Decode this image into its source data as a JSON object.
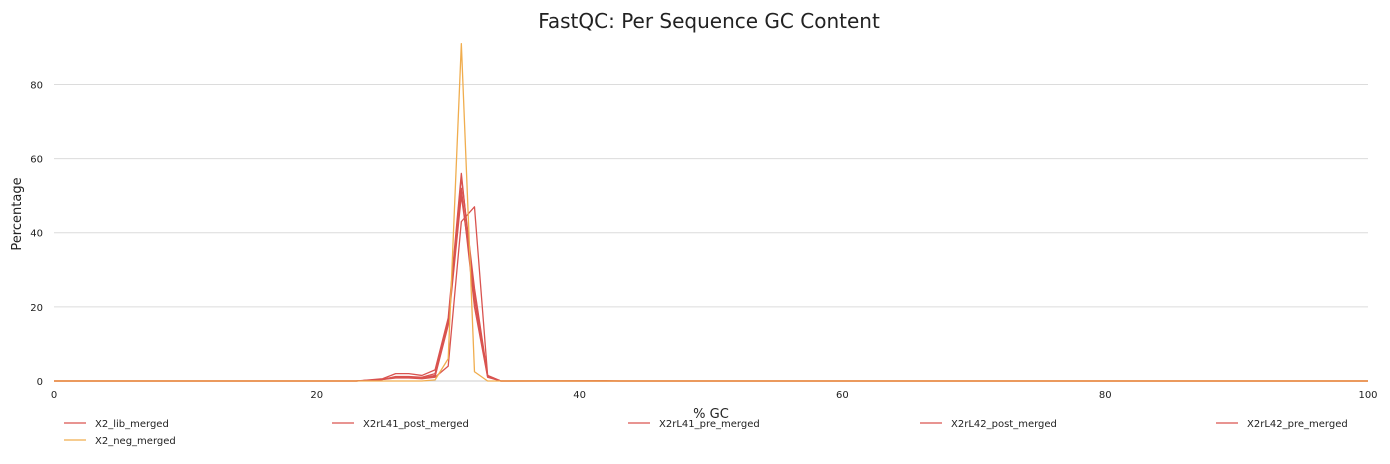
{
  "chart_data": {
    "type": "line",
    "title": "FastQC: Per Sequence GC Content",
    "xlabel": "% GC",
    "ylabel": "Percentage",
    "xlim": [
      0,
      100
    ],
    "ylim": [
      0,
      92
    ],
    "x_ticks": [
      0,
      20,
      40,
      60,
      80,
      100
    ],
    "y_ticks": [
      0,
      20,
      40,
      60,
      80
    ],
    "grid": "horizontal",
    "legend_position": "bottom",
    "series": [
      {
        "name": "X2_lib_merged",
        "color": "#d9534f",
        "points": [
          [
            0,
            0
          ],
          [
            23,
            0
          ],
          [
            24,
            0.2
          ],
          [
            25,
            0.5
          ],
          [
            26,
            1.0
          ],
          [
            27,
            1.0
          ],
          [
            28,
            0.8
          ],
          [
            29,
            1.5
          ],
          [
            30,
            16
          ],
          [
            31,
            55
          ],
          [
            32,
            25
          ],
          [
            33,
            1.5
          ],
          [
            34,
            0
          ],
          [
            100,
            0
          ]
        ]
      },
      {
        "name": "X2rL41_post_merged",
        "color": "#d9534f",
        "points": [
          [
            0,
            0
          ],
          [
            23,
            0
          ],
          [
            24,
            0.3
          ],
          [
            25,
            0.6
          ],
          [
            26,
            2.0
          ],
          [
            27,
            2.0
          ],
          [
            28,
            1.5
          ],
          [
            29,
            3.0
          ],
          [
            30,
            17
          ],
          [
            31,
            56
          ],
          [
            32,
            22
          ],
          [
            33,
            1.2
          ],
          [
            34,
            0
          ],
          [
            100,
            0
          ]
        ]
      },
      {
        "name": "X2rL41_pre_merged",
        "color": "#d9534f",
        "points": [
          [
            0,
            0
          ],
          [
            23,
            0
          ],
          [
            24,
            0.2
          ],
          [
            25,
            0.4
          ],
          [
            26,
            1.2
          ],
          [
            27,
            1.2
          ],
          [
            28,
            1.0
          ],
          [
            29,
            2.0
          ],
          [
            30,
            16
          ],
          [
            31,
            52
          ],
          [
            32,
            20
          ],
          [
            33,
            1.0
          ],
          [
            34,
            0
          ],
          [
            100,
            0
          ]
        ]
      },
      {
        "name": "X2rL42_post_merged",
        "color": "#d9534f",
        "points": [
          [
            0,
            0
          ],
          [
            23,
            0
          ],
          [
            24,
            0.2
          ],
          [
            25,
            0.4
          ],
          [
            26,
            0.8
          ],
          [
            27,
            0.8
          ],
          [
            28,
            0.6
          ],
          [
            29,
            1.0
          ],
          [
            30,
            4
          ],
          [
            31,
            43
          ],
          [
            32,
            47
          ],
          [
            33,
            1.5
          ],
          [
            34,
            0
          ],
          [
            100,
            0
          ]
        ]
      },
      {
        "name": "X2rL42_pre_merged",
        "color": "#d9534f",
        "points": [
          [
            0,
            0
          ],
          [
            23,
            0
          ],
          [
            24,
            0.2
          ],
          [
            25,
            0.4
          ],
          [
            26,
            1.0
          ],
          [
            27,
            1.0
          ],
          [
            28,
            0.8
          ],
          [
            29,
            1.2
          ],
          [
            30,
            15
          ],
          [
            31,
            50
          ],
          [
            32,
            24
          ],
          [
            33,
            1.3
          ],
          [
            34,
            0
          ],
          [
            42,
            0.1
          ],
          [
            43,
            0
          ],
          [
            100,
            0
          ]
        ]
      },
      {
        "name": "X2_neg_merged",
        "color": "#f0ad4e",
        "points": [
          [
            0,
            0
          ],
          [
            28,
            0
          ],
          [
            29,
            0.3
          ],
          [
            30,
            6
          ],
          [
            31,
            91
          ],
          [
            32,
            2.5
          ],
          [
            33,
            0
          ],
          [
            100,
            0
          ]
        ]
      }
    ]
  }
}
